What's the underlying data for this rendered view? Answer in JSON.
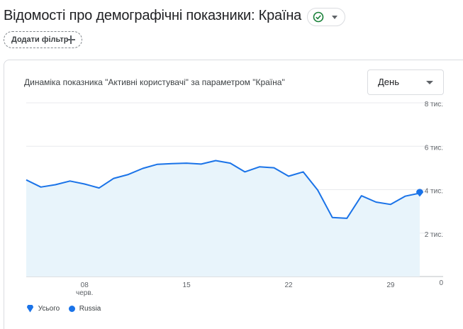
{
  "header": {
    "title": "Відомості про демографічні показники: Країна",
    "filter_label": "Додати фільтр"
  },
  "card": {
    "title": "Динаміка показника \"Активні користувачі\" за параметром \"Країна\"",
    "period": "День"
  },
  "colors": {
    "line": "#1a73e8",
    "area": "#e8f4fb",
    "status_ok": "#188038",
    "marker_total": "#1a73e8",
    "marker_russia": "#1a73e8"
  },
  "icons": {
    "status": "check-circle-icon",
    "status_caret": "chevron-down-icon",
    "filter_add": "plus-icon",
    "period_caret": "chevron-down-icon"
  },
  "legend": [
    {
      "label": "Усього"
    },
    {
      "label": "Russia"
    }
  ],
  "chart_data": {
    "type": "area",
    "y_ticks": [
      "8 тис.",
      "6 тис.",
      "4 тис.",
      "2 тис.",
      "0"
    ],
    "x_ticks": [
      {
        "label": "08",
        "sub": "черв."
      },
      {
        "label": "15",
        "sub": ""
      },
      {
        "label": "22",
        "sub": ""
      },
      {
        "label": "29",
        "sub": ""
      }
    ],
    "ylim": [
      0,
      8000
    ],
    "x_start_day": 4,
    "x_end_day": 31,
    "series": [
      {
        "name": "Усього",
        "days": [
          4,
          5,
          6,
          7,
          8,
          9,
          10,
          11,
          12,
          13,
          14,
          15,
          16,
          17,
          18,
          19,
          20,
          21,
          22,
          23,
          24,
          25,
          26,
          27,
          28,
          29,
          30,
          31
        ],
        "values": [
          4450,
          4120,
          4230,
          4400,
          4260,
          4080,
          4520,
          4700,
          4980,
          5170,
          5200,
          5220,
          5180,
          5340,
          5220,
          4820,
          5050,
          5010,
          4620,
          4820,
          3980,
          2720,
          2680,
          3720,
          3430,
          3320,
          3700,
          3840
        ]
      }
    ]
  }
}
